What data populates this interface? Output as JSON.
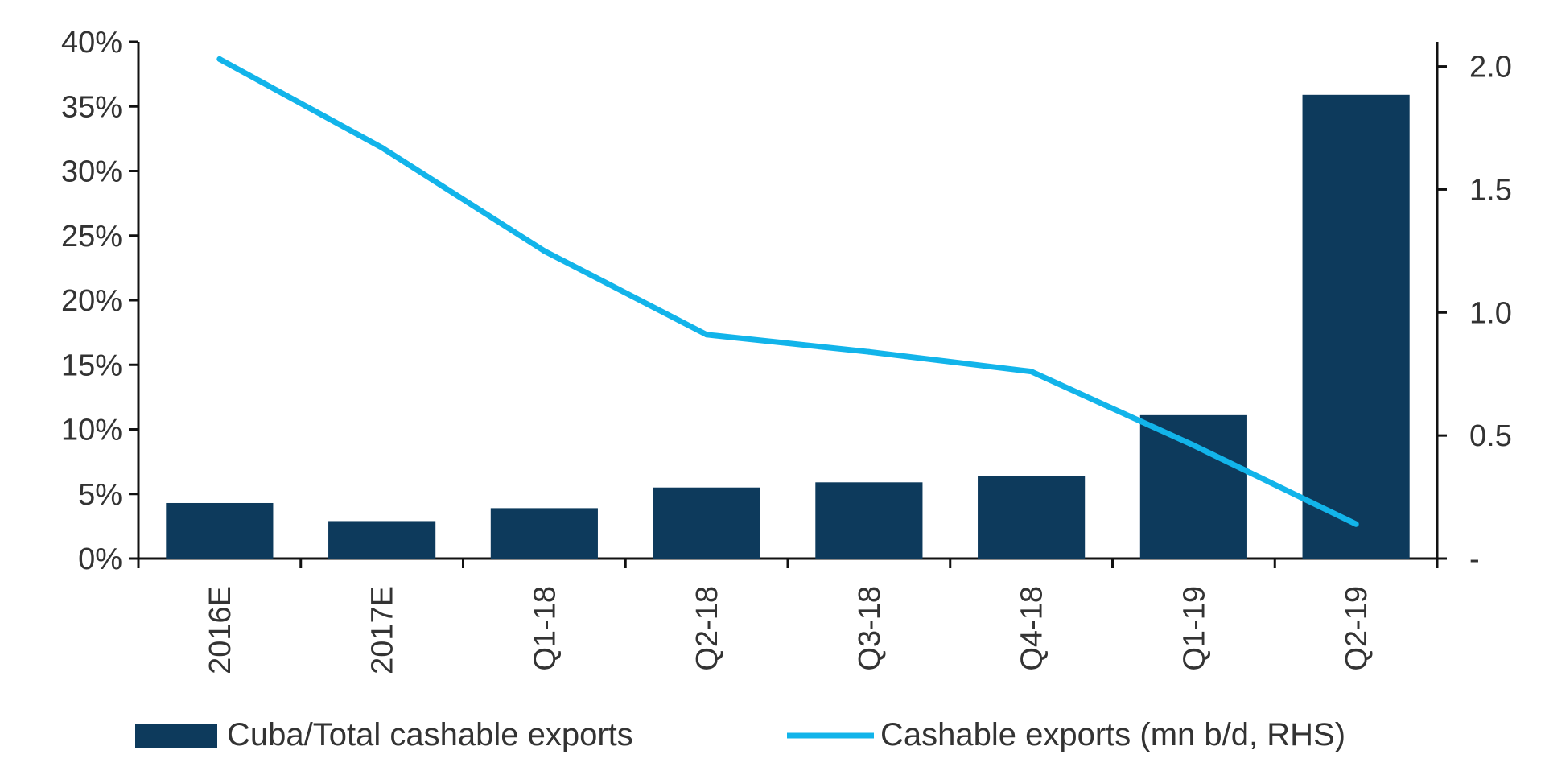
{
  "chart_data": {
    "type": "bar",
    "categories": [
      "2016E",
      "2017E",
      "Q1-18",
      "Q2-18",
      "Q3-18",
      "Q4-18",
      "Q1-19",
      "Q2-19"
    ],
    "series": [
      {
        "name": "Cuba/Total cashable exports",
        "type": "bar",
        "axis": "left",
        "color": "#0d3a5c",
        "values": [
          4.3,
          2.9,
          3.9,
          5.5,
          5.9,
          6.4,
          11.1,
          35.9
        ]
      },
      {
        "name": "Cashable exports (mn b/d, RHS)",
        "type": "line",
        "axis": "right",
        "color": "#12b4ea",
        "values": [
          2.03,
          1.67,
          1.25,
          0.91,
          0.84,
          0.76,
          0.46,
          0.14
        ]
      }
    ],
    "y_left": {
      "min": 0,
      "max": 40,
      "step": 5,
      "tick_labels": [
        "0%",
        "5%",
        "10%",
        "15%",
        "20%",
        "25%",
        "30%",
        "35%",
        "40%"
      ]
    },
    "y_right": {
      "min": 0,
      "max": 2.1,
      "ticks": [
        0,
        0.5,
        1.0,
        1.5,
        2.0
      ],
      "tick_labels": [
        "-",
        "0.5",
        "1.0",
        "1.5",
        "2.0"
      ]
    },
    "grid": false,
    "legend_position": "bottom",
    "title": "",
    "xlabel": "",
    "ylabel": ""
  }
}
